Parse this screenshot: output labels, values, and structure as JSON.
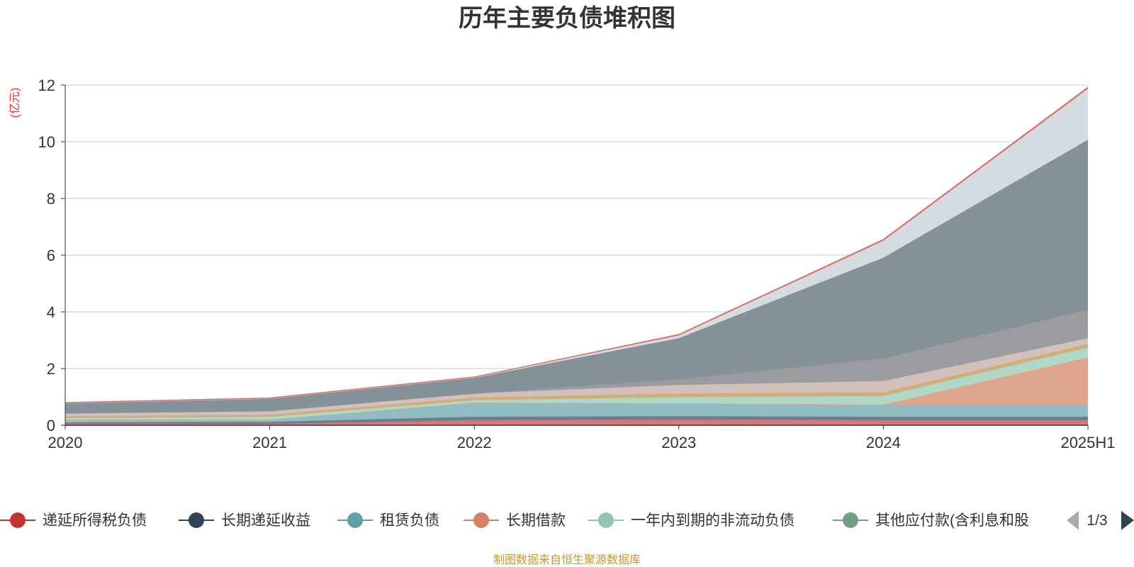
{
  "title": "历年主要负债堆积图",
  "source": "制图数据来自恒生聚源数据库",
  "legend_page": "1/3",
  "chart_data": {
    "type": "area",
    "stacked": true,
    "unit": "(亿元)",
    "categories": [
      "2020",
      "2021",
      "2022",
      "2023",
      "2024",
      "2025H1"
    ],
    "ylim": [
      0,
      12
    ],
    "yticks": [
      0,
      2,
      4,
      6,
      8,
      10,
      12
    ],
    "grid": true,
    "legend_position": "bottom",
    "series": [
      {
        "name": "递延所得税负债",
        "color": "#c23531",
        "fill": "#d4787a",
        "values": [
          0.05,
          0.05,
          0.18,
          0.2,
          0.18,
          0.18
        ]
      },
      {
        "name": "长期递延收益",
        "color": "#2f4554",
        "fill": "#6b7e8b",
        "values": [
          0.05,
          0.07,
          0.12,
          0.12,
          0.12,
          0.12
        ]
      },
      {
        "name": "租赁负债",
        "color": "#61a0a8",
        "fill": "#90bcc2",
        "values": [
          0.1,
          0.08,
          0.5,
          0.45,
          0.43,
          0.42
        ]
      },
      {
        "name": "长期借款",
        "color": "#d48265",
        "fill": "#e0a58e",
        "values": [
          0.0,
          0.0,
          0.0,
          0.0,
          0.0,
          1.67
        ]
      },
      {
        "name": "一年内到期的非流动负债",
        "color": "#91c7ae",
        "fill": "#b0d8c4",
        "values": [
          0.05,
          0.1,
          0.08,
          0.22,
          0.3,
          0.35
        ]
      },
      {
        "name": "其他应付款(含利息和股",
        "color": "#749f83",
        "fill": "#a2bdab",
        "values": [
          0.02,
          0.02,
          0.02,
          0.03,
          0.03,
          0.03
        ]
      },
      {
        "name": "",
        "color": "#ca8622",
        "fill": "#d9ac6e",
        "values": [
          0.05,
          0.05,
          0.08,
          0.1,
          0.1,
          0.1
        ]
      },
      {
        "name": "",
        "color": "#bda29a",
        "fill": "#d2c0bb",
        "values": [
          0.1,
          0.13,
          0.14,
          0.3,
          0.4,
          0.2
        ]
      },
      {
        "name": "",
        "color": "#6e7074",
        "fill": "#9a9c9f",
        "values": [
          0.0,
          0.0,
          0.0,
          0.2,
          0.8,
          1.0
        ]
      },
      {
        "name": "",
        "color": "#546570",
        "fill": "#849199",
        "values": [
          0.35,
          0.43,
          0.55,
          1.45,
          3.55,
          6.0
        ]
      },
      {
        "name": "",
        "color": "#c4ccd3",
        "fill": "#d4dbe1",
        "values": [
          0.02,
          0.02,
          0.02,
          0.1,
          0.6,
          1.8
        ]
      },
      {
        "name": "",
        "color": "#e06b66",
        "fill": "#e06b66",
        "values": [
          0.01,
          0.01,
          0.01,
          0.03,
          0.04,
          0.05
        ]
      }
    ]
  },
  "colors": {
    "title": "#333333",
    "unit": "#e8332b",
    "source": "#c9962a",
    "grid": "#cccccc",
    "axis": "#333333"
  }
}
